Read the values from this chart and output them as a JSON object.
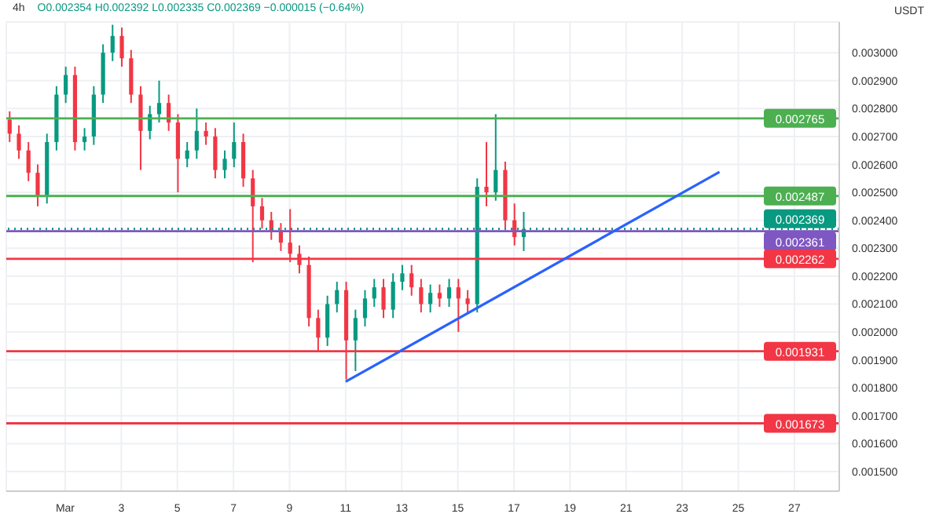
{
  "chart_data": {
    "type": "candlestick",
    "title": "4h",
    "subtitle": "O0.002354 H0.002392 L0.002335 C0.002369 −0.000015 (−0.64%)",
    "ylabel": "USDT",
    "x": [
      -1,
      -0.67,
      -0.33,
      0,
      0.33,
      0.67,
      1,
      1.33,
      1.67,
      2,
      2.33,
      2.67,
      3,
      3.33,
      3.67,
      4,
      4.33,
      4.67,
      5,
      5.33,
      5.67,
      6,
      6.33,
      6.67,
      7,
      7.33,
      7.67,
      8,
      8.33,
      8.67,
      9,
      9.33,
      9.67,
      10,
      10.33,
      10.67,
      11,
      11.33,
      11.67,
      12,
      12.33,
      12.67,
      13,
      13.33,
      13.67,
      14,
      14.33,
      14.67,
      15,
      15.33,
      15.67,
      16,
      16.33,
      16.67,
      17,
      17.33
    ],
    "ohlc": [
      [
        0.00276,
        0.00279,
        0.00268,
        0.00271
      ],
      [
        0.00271,
        0.00274,
        0.00262,
        0.00265
      ],
      [
        0.00265,
        0.00268,
        0.00254,
        0.00257
      ],
      [
        0.00257,
        0.0026,
        0.00245,
        0.00249
      ],
      [
        0.00249,
        0.00271,
        0.00246,
        0.00268
      ],
      [
        0.00268,
        0.00288,
        0.00265,
        0.00285
      ],
      [
        0.00285,
        0.00295,
        0.00282,
        0.00292
      ],
      [
        0.00292,
        0.00295,
        0.00265,
        0.00268
      ],
      [
        0.00268,
        0.00273,
        0.00265,
        0.0027
      ],
      [
        0.0027,
        0.00288,
        0.00267,
        0.00285
      ],
      [
        0.00285,
        0.00303,
        0.00282,
        0.003
      ],
      [
        0.003,
        0.0031,
        0.00297,
        0.00306
      ],
      [
        0.00306,
        0.00309,
        0.00295,
        0.00298
      ],
      [
        0.00298,
        0.00301,
        0.00282,
        0.00285
      ],
      [
        0.00285,
        0.00288,
        0.00258,
        0.00272
      ],
      [
        0.00272,
        0.00281,
        0.00269,
        0.00278
      ],
      [
        0.00278,
        0.0029,
        0.00275,
        0.00282
      ],
      [
        0.00282,
        0.00285,
        0.00272,
        0.00275
      ],
      [
        0.00275,
        0.00278,
        0.0025,
        0.00262
      ],
      [
        0.00262,
        0.00268,
        0.00259,
        0.00265
      ],
      [
        0.00265,
        0.0028,
        0.00262,
        0.00272
      ],
      [
        0.00272,
        0.00275,
        0.00267,
        0.0027
      ],
      [
        0.0027,
        0.00273,
        0.00255,
        0.00258
      ],
      [
        0.00258,
        0.00265,
        0.00255,
        0.00262
      ],
      [
        0.00262,
        0.00275,
        0.00259,
        0.00268
      ],
      [
        0.00268,
        0.00271,
        0.00252,
        0.00255
      ],
      [
        0.00255,
        0.00258,
        0.00225,
        0.00245
      ],
      [
        0.00245,
        0.00248,
        0.00237,
        0.0024
      ],
      [
        0.0024,
        0.00243,
        0.00233,
        0.00236
      ],
      [
        0.00236,
        0.00239,
        0.00229,
        0.00232
      ],
      [
        0.00232,
        0.00244,
        0.00225,
        0.00228
      ],
      [
        0.00228,
        0.00231,
        0.00221,
        0.00224
      ],
      [
        0.00224,
        0.00227,
        0.00202,
        0.00205
      ],
      [
        0.00205,
        0.00208,
        0.00193,
        0.00198
      ],
      [
        0.00198,
        0.00213,
        0.00195,
        0.0021
      ],
      [
        0.0021,
        0.00218,
        0.00207,
        0.00215
      ],
      [
        0.00215,
        0.00218,
        0.00183,
        0.00197
      ],
      [
        0.00197,
        0.00208,
        0.00186,
        0.00205
      ],
      [
        0.00205,
        0.00215,
        0.00202,
        0.00212
      ],
      [
        0.00212,
        0.00219,
        0.00209,
        0.00216
      ],
      [
        0.00216,
        0.00219,
        0.00205,
        0.00208
      ],
      [
        0.00208,
        0.00221,
        0.00205,
        0.00218
      ],
      [
        0.00218,
        0.00224,
        0.00215,
        0.00221
      ],
      [
        0.00221,
        0.00224,
        0.00213,
        0.00216
      ],
      [
        0.00216,
        0.00219,
        0.00207,
        0.0021
      ],
      [
        0.0021,
        0.00217,
        0.00207,
        0.00214
      ],
      [
        0.00214,
        0.00217,
        0.00209,
        0.00212
      ],
      [
        0.00212,
        0.00219,
        0.00209,
        0.00216
      ],
      [
        0.00216,
        0.00219,
        0.002,
        0.00212
      ],
      [
        0.00212,
        0.00215,
        0.00207,
        0.0021
      ],
      [
        0.0021,
        0.00255,
        0.00207,
        0.00252
      ],
      [
        0.00252,
        0.00268,
        0.00245,
        0.0025
      ],
      [
        0.0025,
        0.00278,
        0.00247,
        0.00258
      ],
      [
        0.00258,
        0.00261,
        0.00237,
        0.0024
      ],
      [
        0.0024,
        0.00246,
        0.00231,
        0.00234
      ],
      [
        0.00234,
        0.00243,
        0.00229,
        0.002369
      ]
    ],
    "colors": [
      "#f23645",
      "#f23645",
      "#f23645",
      "#f23645",
      "#089981",
      "#089981",
      "#089981",
      "#f23645",
      "#089981",
      "#089981",
      "#089981",
      "#089981",
      "#f23645",
      "#f23645",
      "#f23645",
      "#089981",
      "#089981",
      "#f23645",
      "#f23645",
      "#089981",
      "#089981",
      "#f23645",
      "#f23645",
      "#089981",
      "#089981",
      "#f23645",
      "#f23645",
      "#f23645",
      "#f23645",
      "#f23645",
      "#f23645",
      "#f23645",
      "#f23645",
      "#f23645",
      "#089981",
      "#089981",
      "#f23645",
      "#089981",
      "#089981",
      "#089981",
      "#f23645",
      "#089981",
      "#089981",
      "#f23645",
      "#f23645",
      "#089981",
      "#f23645",
      "#089981",
      "#f23645",
      "#f23645",
      "#089981",
      "#f23645",
      "#089981",
      "#f23645",
      "#f23645",
      "#089981"
    ],
    "series": [
      {
        "type": "line",
        "x": [
          11,
          24.33
        ],
        "values": [
          0.001822,
          0.002573
        ],
        "color": "#2962ff"
      }
    ],
    "ref_lines": [
      {
        "axis": "y",
        "value": 0.002765,
        "label": "0.002765",
        "color": "#4caf50"
      },
      {
        "axis": "y",
        "value": 0.002487,
        "label": "0.002487",
        "color": "#4caf50"
      },
      {
        "axis": "y",
        "value": 0.002369,
        "label": "0.002369",
        "color": "#089981",
        "line_style": "dotted"
      },
      {
        "axis": "y",
        "value": 0.002361,
        "label": "0.002361",
        "color": "#7e57c2"
      },
      {
        "axis": "y",
        "value": 0.002262,
        "label": "0.002262",
        "color": "#f23645"
      },
      {
        "axis": "y",
        "value": 0.001931,
        "label": "0.001931",
        "color": "#f23645"
      },
      {
        "axis": "y",
        "value": 0.001673,
        "label": "0.001673",
        "color": "#f23645"
      }
    ],
    "xlim": [
      -1.1,
      28.6
    ],
    "xticks": [
      {
        "value": 1,
        "label": "Mar"
      },
      3,
      5,
      7,
      9,
      11,
      13,
      15,
      17,
      19,
      21,
      23,
      25,
      27
    ],
    "ylim": [
      0.00143,
      0.00311
    ],
    "yticks": [
      {
        "value": 0.0015,
        "label": "0.001500"
      },
      {
        "value": 0.0016,
        "label": "0.001600"
      },
      {
        "value": 0.0017,
        "label": "0.001700"
      },
      {
        "value": 0.0018,
        "label": "0.001800"
      },
      {
        "value": 0.0019,
        "label": "0.001900"
      },
      {
        "value": 0.002,
        "label": "0.002000"
      },
      {
        "value": 0.0021,
        "label": "0.002100"
      },
      {
        "value": 0.0022,
        "label": "0.002200"
      },
      {
        "value": 0.0023,
        "label": "0.002300"
      },
      {
        "value": 0.0024,
        "label": "0.002400"
      },
      {
        "value": 0.0025,
        "label": "0.002500"
      },
      {
        "value": 0.0026,
        "label": "0.002600"
      },
      {
        "value": 0.0027,
        "label": "0.002700"
      },
      {
        "value": 0.0028,
        "label": "0.002800"
      },
      {
        "value": 0.0029,
        "label": "0.002900"
      },
      {
        "value": 0.003,
        "label": "0.003000"
      }
    ],
    "grid": true
  }
}
